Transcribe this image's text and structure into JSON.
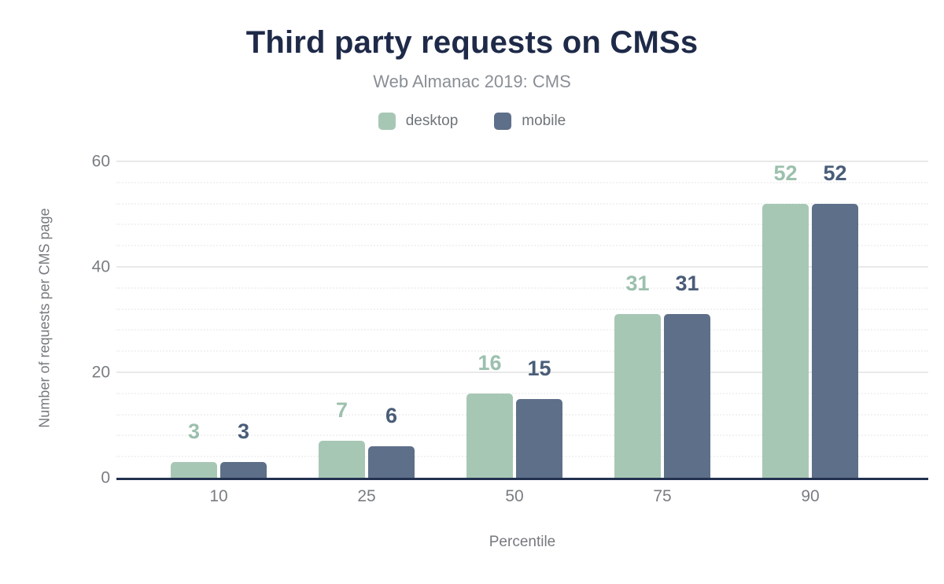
{
  "chart_data": {
    "type": "bar",
    "title": "Third party requests on CMSs",
    "subtitle": "Web Almanac 2019: CMS",
    "categories": [
      "10",
      "25",
      "50",
      "75",
      "90"
    ],
    "series": [
      {
        "name": "desktop",
        "color": "#a7c7b5",
        "label_color": "#9cc0ad",
        "values": [
          3,
          7,
          16,
          31,
          52
        ]
      },
      {
        "name": "mobile",
        "color": "#5e6f89",
        "label_color": "#4a5d78",
        "values": [
          3,
          6,
          15,
          31,
          52
        ]
      }
    ],
    "xlabel": "Percentile",
    "ylabel": "Number of requests per CMS page",
    "ylim": [
      0,
      60
    ],
    "y_major_step": 20,
    "y_minor_step": 4,
    "y_tick_labels": [
      "0",
      "20",
      "40",
      "60"
    ],
    "legend_position": "top",
    "grid": true
  },
  "colors": {
    "title": "#1e2a48",
    "axis_line": "#233250",
    "muted_text": "#76797e",
    "grid_major": "#e9e9e9",
    "grid_minor": "#f2f2f2",
    "background": "#ffffff"
  }
}
